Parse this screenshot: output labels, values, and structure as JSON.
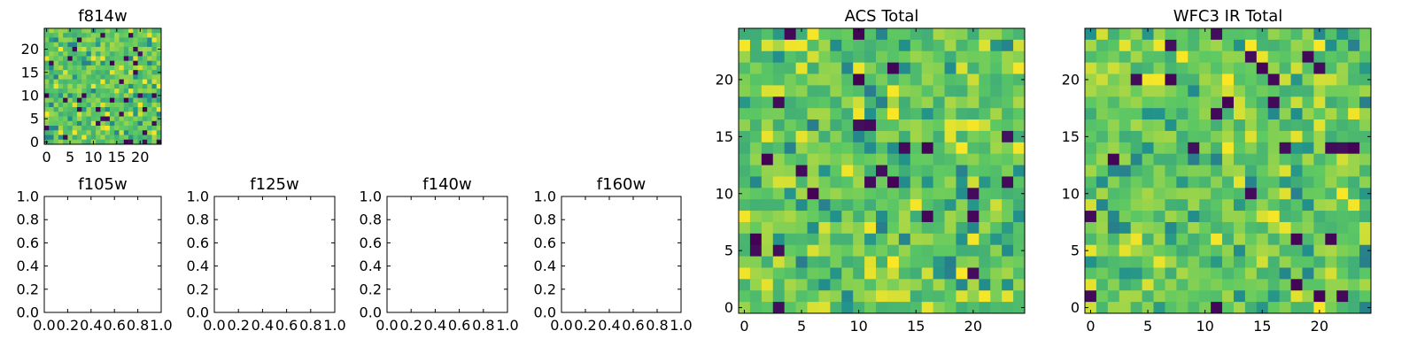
{
  "figure": {
    "background": "#ffffff"
  },
  "colormap": {
    "name": "viridis",
    "low": "#440154",
    "mid": "#21918c",
    "high": "#fde725"
  },
  "chart_data": [
    {
      "type": "heatmap",
      "title": "f814w",
      "xticks": [
        "0",
        "5",
        "10",
        "15",
        "20"
      ],
      "yticks": [
        "0",
        "5",
        "10",
        "15",
        "20"
      ],
      "xlim": [
        -0.5,
        24.5
      ],
      "ylim": [
        -0.5,
        24.5
      ],
      "grid_size": [
        25,
        25
      ],
      "values_source": "random noise image (per-pixel values not legible)"
    },
    {
      "type": "heatmap",
      "title": "f105w",
      "xticks": [
        "0.0",
        "0.2",
        "0.4",
        "0.6",
        "0.8",
        "1.0"
      ],
      "yticks": [
        "0.0",
        "0.2",
        "0.4",
        "0.6",
        "0.8",
        "1.0"
      ],
      "xlim": [
        0,
        1
      ],
      "ylim": [
        0,
        1
      ],
      "values": []
    },
    {
      "type": "heatmap",
      "title": "f125w",
      "xticks": [
        "0.0",
        "0.2",
        "0.4",
        "0.6",
        "0.8",
        "1.0"
      ],
      "yticks": [
        "0.0",
        "0.2",
        "0.4",
        "0.6",
        "0.8",
        "1.0"
      ],
      "xlim": [
        0,
        1
      ],
      "ylim": [
        0,
        1
      ],
      "values": []
    },
    {
      "type": "heatmap",
      "title": "f140w",
      "xticks": [
        "0.0",
        "0.2",
        "0.4",
        "0.6",
        "0.8",
        "1.0"
      ],
      "yticks": [
        "0.0",
        "0.2",
        "0.4",
        "0.6",
        "0.8",
        "1.0"
      ],
      "xlim": [
        0,
        1
      ],
      "ylim": [
        0,
        1
      ],
      "values": []
    },
    {
      "type": "heatmap",
      "title": "f160w",
      "xticks": [
        "0.0",
        "0.2",
        "0.4",
        "0.6",
        "0.8",
        "1.0"
      ],
      "yticks": [
        "0.0",
        "0.2",
        "0.4",
        "0.6",
        "0.8",
        "1.0"
      ],
      "xlim": [
        0,
        1
      ],
      "ylim": [
        0,
        1
      ],
      "values": []
    },
    {
      "type": "heatmap",
      "title": "ACS Total",
      "xticks": [
        "0",
        "5",
        "10",
        "15",
        "20"
      ],
      "yticks": [
        "0",
        "5",
        "10",
        "15",
        "20"
      ],
      "xlim": [
        -0.5,
        24.5
      ],
      "ylim": [
        -0.5,
        24.5
      ],
      "grid_size": [
        25,
        25
      ],
      "values_source": "random noise image (per-pixel values not legible)"
    },
    {
      "type": "heatmap",
      "title": "WFC3 IR Total",
      "xticks": [
        "0",
        "5",
        "10",
        "15",
        "20"
      ],
      "yticks": [
        "0",
        "5",
        "10",
        "15",
        "20"
      ],
      "xlim": [
        -0.5,
        24.5
      ],
      "ylim": [
        -0.5,
        24.5
      ],
      "grid_size": [
        25,
        25
      ],
      "values_source": "random noise image (per-pixel values not legible)"
    }
  ]
}
